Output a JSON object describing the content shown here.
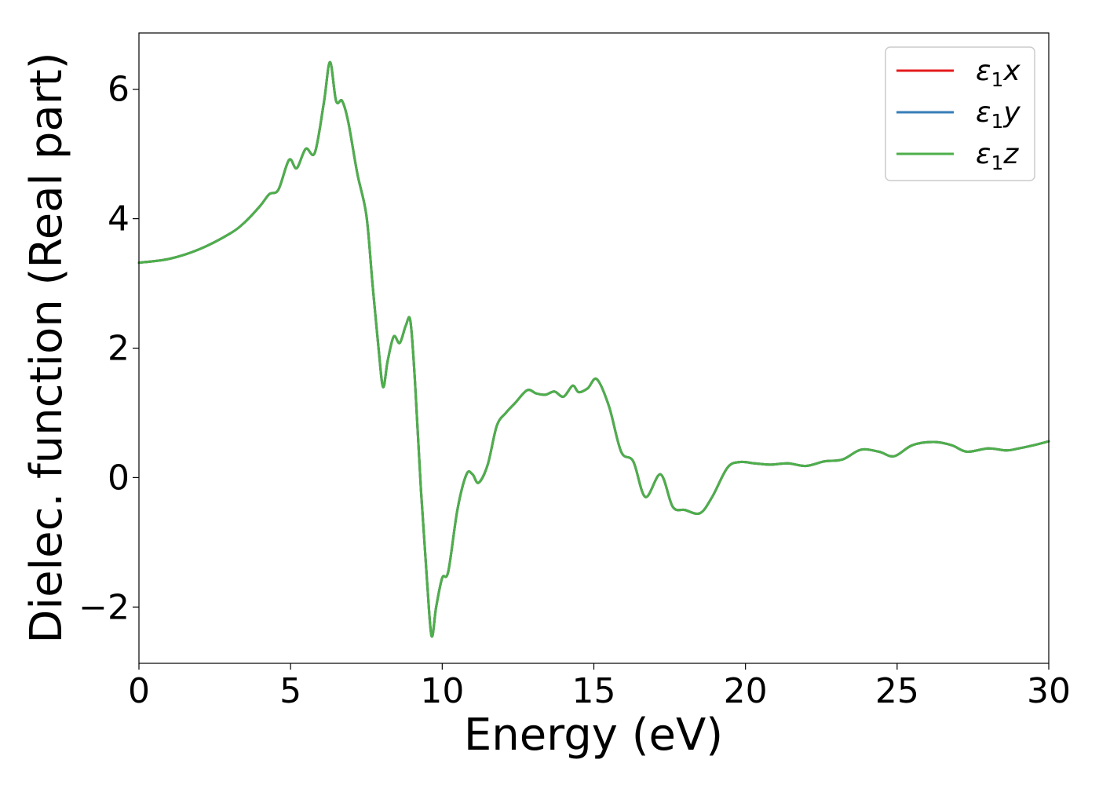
{
  "chart_data": {
    "type": "line",
    "xlabel": "Energy (eV)",
    "ylabel": "Dielec. function (Real part)",
    "xlim": [
      0,
      30
    ],
    "ylim": [
      -2.87,
      6.87
    ],
    "xticks": [
      0,
      5,
      10,
      15,
      20,
      25,
      30
    ],
    "yticks": [
      -2,
      0,
      2,
      4,
      6
    ],
    "xtick_labels": [
      "0",
      "5",
      "10",
      "15",
      "20",
      "25",
      "30"
    ],
    "ytick_labels": [
      "−2",
      "0",
      "2",
      "4",
      "6"
    ],
    "grid": false,
    "legend_position": "top-right",
    "series": [
      {
        "name": "ε₁x",
        "legend_base": "ε",
        "legend_sub": "1",
        "legend_var": "x",
        "color": "#e41a1c",
        "x": [
          0,
          1,
          2,
          3,
          3.5,
          4.0,
          4.3,
          4.6,
          4.95,
          5.2,
          5.5,
          5.8,
          6.1,
          6.3,
          6.5,
          6.7,
          6.9,
          7.2,
          7.5,
          7.7,
          7.9,
          8.05,
          8.2,
          8.4,
          8.6,
          8.8,
          8.95,
          9.1,
          9.3,
          9.5,
          9.65,
          9.8,
          10.0,
          10.2,
          10.5,
          10.8,
          11.0,
          11.2,
          11.5,
          11.8,
          12.1,
          12.4,
          12.8,
          13.1,
          13.4,
          13.7,
          14.0,
          14.3,
          14.5,
          14.8,
          15.1,
          15.5,
          15.9,
          16.3,
          16.7,
          17.2,
          17.6,
          18.0,
          18.5,
          18.9,
          19.4,
          19.8,
          20.3,
          20.8,
          21.4,
          22.0,
          22.6,
          23.2,
          23.8,
          24.4,
          24.9,
          25.5,
          26.2,
          26.8,
          27.3,
          28.0,
          28.6,
          29.0,
          29.5,
          30.0
        ],
        "y": [
          3.32,
          3.38,
          3.53,
          3.77,
          3.95,
          4.2,
          4.38,
          4.45,
          4.91,
          4.78,
          5.08,
          5.02,
          5.8,
          6.42,
          5.82,
          5.82,
          5.5,
          4.7,
          4.05,
          3.0,
          2.0,
          1.4,
          1.8,
          2.18,
          2.08,
          2.35,
          2.42,
          1.5,
          -0.2,
          -1.6,
          -2.45,
          -2.0,
          -1.55,
          -1.45,
          -0.5,
          0.05,
          0.05,
          -0.08,
          0.2,
          0.8,
          1.0,
          1.15,
          1.35,
          1.3,
          1.28,
          1.33,
          1.25,
          1.42,
          1.32,
          1.38,
          1.52,
          1.1,
          0.4,
          0.25,
          -0.3,
          0.05,
          -0.45,
          -0.5,
          -0.55,
          -0.3,
          0.15,
          0.24,
          0.22,
          0.2,
          0.22,
          0.18,
          0.25,
          0.28,
          0.43,
          0.4,
          0.33,
          0.5,
          0.55,
          0.5,
          0.4,
          0.45,
          0.42,
          0.45,
          0.5,
          0.56
        ]
      },
      {
        "name": "ε₁y",
        "legend_base": "ε",
        "legend_sub": "1",
        "legend_var": "y",
        "color": "#377eb8",
        "x": [
          0,
          1,
          2,
          3,
          3.5,
          4.0,
          4.3,
          4.6,
          4.95,
          5.2,
          5.5,
          5.8,
          6.1,
          6.3,
          6.5,
          6.7,
          6.9,
          7.2,
          7.5,
          7.7,
          7.9,
          8.05,
          8.2,
          8.4,
          8.6,
          8.8,
          8.95,
          9.1,
          9.3,
          9.5,
          9.65,
          9.8,
          10.0,
          10.2,
          10.5,
          10.8,
          11.0,
          11.2,
          11.5,
          11.8,
          12.1,
          12.4,
          12.8,
          13.1,
          13.4,
          13.7,
          14.0,
          14.3,
          14.5,
          14.8,
          15.1,
          15.5,
          15.9,
          16.3,
          16.7,
          17.2,
          17.6,
          18.0,
          18.5,
          18.9,
          19.4,
          19.8,
          20.3,
          20.8,
          21.4,
          22.0,
          22.6,
          23.2,
          23.8,
          24.4,
          24.9,
          25.5,
          26.2,
          26.8,
          27.3,
          28.0,
          28.6,
          29.0,
          29.5,
          30.0
        ],
        "y": [
          3.32,
          3.38,
          3.53,
          3.77,
          3.95,
          4.2,
          4.38,
          4.45,
          4.91,
          4.78,
          5.08,
          5.02,
          5.8,
          6.42,
          5.82,
          5.82,
          5.5,
          4.7,
          4.05,
          3.0,
          2.0,
          1.4,
          1.8,
          2.18,
          2.08,
          2.35,
          2.42,
          1.5,
          -0.2,
          -1.6,
          -2.45,
          -2.0,
          -1.55,
          -1.45,
          -0.5,
          0.05,
          0.05,
          -0.08,
          0.2,
          0.8,
          1.0,
          1.15,
          1.35,
          1.3,
          1.28,
          1.33,
          1.25,
          1.42,
          1.32,
          1.38,
          1.52,
          1.1,
          0.4,
          0.25,
          -0.3,
          0.05,
          -0.45,
          -0.5,
          -0.55,
          -0.3,
          0.15,
          0.24,
          0.22,
          0.2,
          0.22,
          0.18,
          0.25,
          0.28,
          0.43,
          0.4,
          0.33,
          0.5,
          0.55,
          0.5,
          0.4,
          0.45,
          0.42,
          0.45,
          0.5,
          0.56
        ]
      },
      {
        "name": "ε₁z",
        "legend_base": "ε",
        "legend_sub": "1",
        "legend_var": "z",
        "color": "#4daf4a",
        "x": [
          0,
          1,
          2,
          3,
          3.5,
          4.0,
          4.3,
          4.6,
          4.95,
          5.2,
          5.5,
          5.8,
          6.1,
          6.3,
          6.5,
          6.7,
          6.9,
          7.2,
          7.5,
          7.7,
          7.9,
          8.05,
          8.2,
          8.4,
          8.6,
          8.8,
          8.95,
          9.1,
          9.3,
          9.5,
          9.65,
          9.8,
          10.0,
          10.2,
          10.5,
          10.8,
          11.0,
          11.2,
          11.5,
          11.8,
          12.1,
          12.4,
          12.8,
          13.1,
          13.4,
          13.7,
          14.0,
          14.3,
          14.5,
          14.8,
          15.1,
          15.5,
          15.9,
          16.3,
          16.7,
          17.2,
          17.6,
          18.0,
          18.5,
          18.9,
          19.4,
          19.8,
          20.3,
          20.8,
          21.4,
          22.0,
          22.6,
          23.2,
          23.8,
          24.4,
          24.9,
          25.5,
          26.2,
          26.8,
          27.3,
          28.0,
          28.6,
          29.0,
          29.5,
          30.0
        ],
        "y": [
          3.32,
          3.38,
          3.53,
          3.77,
          3.95,
          4.2,
          4.38,
          4.45,
          4.91,
          4.78,
          5.08,
          5.02,
          5.8,
          6.42,
          5.82,
          5.82,
          5.5,
          4.7,
          4.05,
          3.0,
          2.0,
          1.4,
          1.8,
          2.18,
          2.08,
          2.35,
          2.42,
          1.5,
          -0.2,
          -1.6,
          -2.45,
          -2.0,
          -1.55,
          -1.45,
          -0.5,
          0.05,
          0.05,
          -0.08,
          0.2,
          0.8,
          1.0,
          1.15,
          1.35,
          1.3,
          1.28,
          1.33,
          1.25,
          1.42,
          1.32,
          1.38,
          1.52,
          1.1,
          0.4,
          0.25,
          -0.3,
          0.05,
          -0.45,
          -0.5,
          -0.55,
          -0.3,
          0.15,
          0.24,
          0.22,
          0.2,
          0.22,
          0.18,
          0.25,
          0.28,
          0.43,
          0.4,
          0.33,
          0.5,
          0.55,
          0.5,
          0.4,
          0.45,
          0.42,
          0.45,
          0.5,
          0.56
        ]
      }
    ]
  }
}
